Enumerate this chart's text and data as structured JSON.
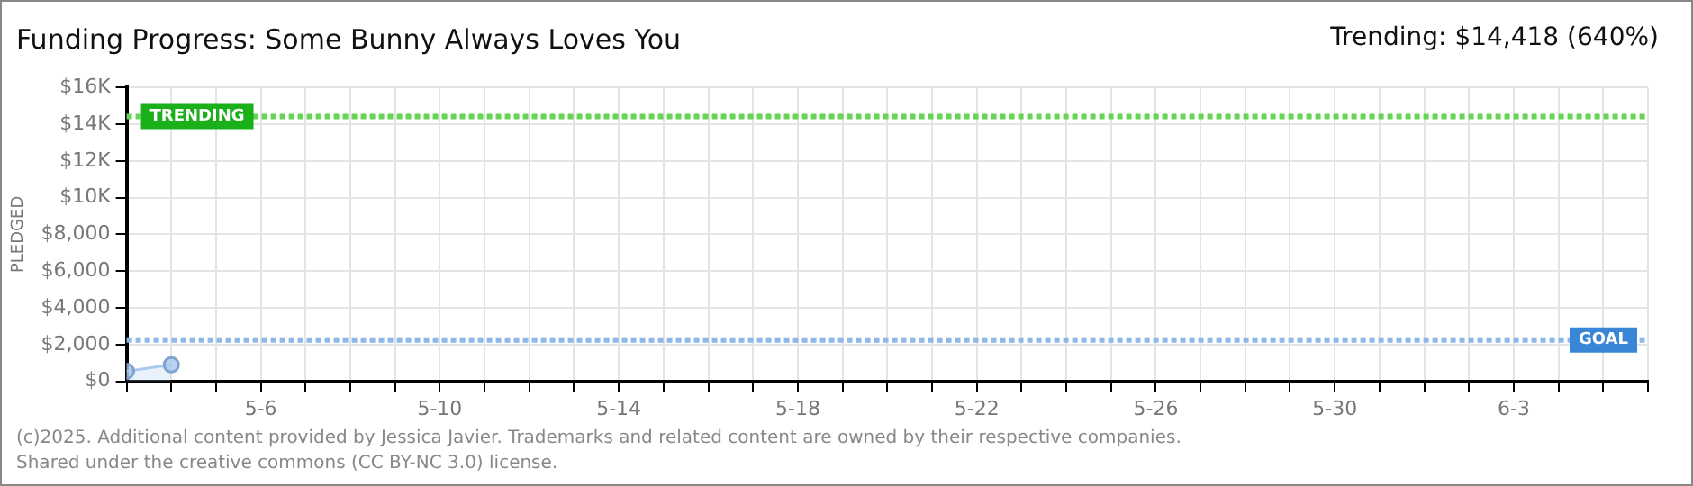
{
  "chart_data": {
    "type": "area",
    "title": "Funding Progress: Some Bunny Always Loves You",
    "subtitle": "Trending: $14,418 (640%)",
    "ylabel": "PLEDGED",
    "x": [
      "2025-05-03",
      "2025-05-04"
    ],
    "series": [
      {
        "color": "#a9c8ee",
        "values": [
          550,
          900
        ]
      }
    ],
    "xlim": [
      "2025-05-03",
      "2025-06-06"
    ],
    "xticks": [
      {
        "value": "2025-05-03",
        "label": null
      },
      {
        "value": "2025-05-04",
        "label": null
      },
      {
        "value": "2025-05-05",
        "label": null
      },
      {
        "value": "2025-05-06",
        "label": "5-6"
      },
      {
        "value": "2025-05-07",
        "label": null
      },
      {
        "value": "2025-05-08",
        "label": null
      },
      {
        "value": "2025-05-09",
        "label": null
      },
      {
        "value": "2025-05-10",
        "label": "5-10"
      },
      {
        "value": "2025-05-11",
        "label": null
      },
      {
        "value": "2025-05-12",
        "label": null
      },
      {
        "value": "2025-05-13",
        "label": null
      },
      {
        "value": "2025-05-14",
        "label": "5-14"
      },
      {
        "value": "2025-05-15",
        "label": null
      },
      {
        "value": "2025-05-16",
        "label": null
      },
      {
        "value": "2025-05-17",
        "label": null
      },
      {
        "value": "2025-05-18",
        "label": "5-18"
      },
      {
        "value": "2025-05-19",
        "label": null
      },
      {
        "value": "2025-05-20",
        "label": null
      },
      {
        "value": "2025-05-21",
        "label": null
      },
      {
        "value": "2025-05-22",
        "label": "5-22"
      },
      {
        "value": "2025-05-23",
        "label": null
      },
      {
        "value": "2025-05-24",
        "label": null
      },
      {
        "value": "2025-05-25",
        "label": null
      },
      {
        "value": "2025-05-26",
        "label": "5-26"
      },
      {
        "value": "2025-05-27",
        "label": null
      },
      {
        "value": "2025-05-28",
        "label": null
      },
      {
        "value": "2025-05-29",
        "label": null
      },
      {
        "value": "2025-05-30",
        "label": "5-30"
      },
      {
        "value": "2025-05-31",
        "label": null
      },
      {
        "value": "2025-06-01",
        "label": null
      },
      {
        "value": "2025-06-02",
        "label": null
      },
      {
        "value": "2025-06-03",
        "label": "6-3"
      },
      {
        "value": "2025-06-04",
        "label": null
      },
      {
        "value": "2025-06-05",
        "label": null
      },
      {
        "value": "2025-06-06",
        "label": null
      }
    ],
    "ylim": [
      0,
      16000
    ],
    "yticks": [
      {
        "value": 0,
        "label": "$0"
      },
      {
        "value": 2000,
        "label": "$2,000"
      },
      {
        "value": 4000,
        "label": "$4,000"
      },
      {
        "value": 6000,
        "label": "$6,000"
      },
      {
        "value": 8000,
        "label": "$8,000"
      },
      {
        "value": 10000,
        "label": "$10K"
      },
      {
        "value": 12000,
        "label": "$12K"
      },
      {
        "value": 14000,
        "label": "$14K"
      },
      {
        "value": 16000,
        "label": "$16K"
      }
    ],
    "ref_lines": [
      {
        "axis": "y",
        "value": 14418,
        "label": "TRENDING",
        "color": "#66d455",
        "line_style": "dotted"
      },
      {
        "axis": "y",
        "value": 2253,
        "label": "GOAL",
        "color": "#8fb8ea",
        "line_style": "dotted"
      }
    ],
    "grid": true,
    "legend": false,
    "marker": "circle",
    "annotations": [
      "(c)2025. Additional content provided by Jessica Javier. Trademarks and related content are owned by their respective companies.",
      "Shared under the creative commons (CC BY-NC 3.0) license."
    ]
  }
}
